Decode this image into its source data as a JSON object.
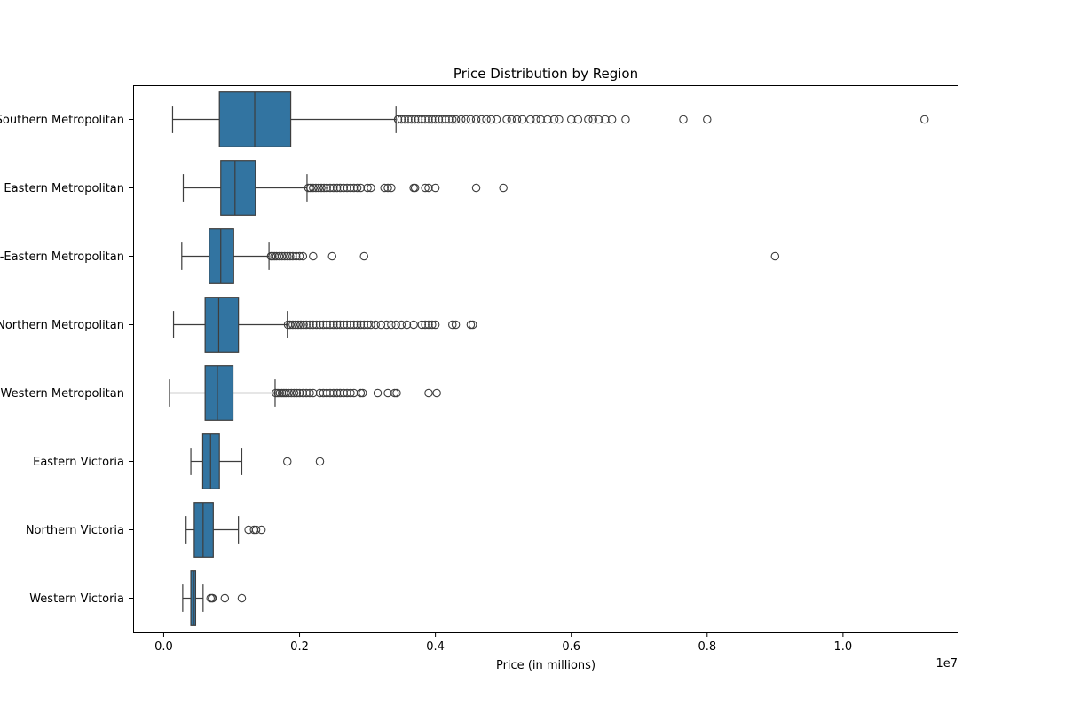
{
  "chart_data": {
    "type": "boxplot",
    "orientation": "horizontal",
    "title": "Price Distribution by Region",
    "xlabel": "Price (in millions)",
    "ylabel": "",
    "x_offset_label": "1e7",
    "xlim": [
      -450000,
      11700000
    ],
    "x_ticks": [
      0,
      2000000,
      4000000,
      6000000,
      8000000,
      10000000
    ],
    "x_tick_labels": [
      "0.0",
      "0.2",
      "0.4",
      "0.6",
      "0.8",
      "1.0"
    ],
    "grid": false,
    "colors": {
      "box": "#3274a1",
      "line": "#3d3d3d",
      "outlier_edge": "#3d3d3d"
    },
    "categories": [
      {
        "label": "Southern Metropolitan",
        "whisker_low": 131000,
        "q1": 820000,
        "median": 1340000,
        "q3": 1870000,
        "whisker_high": 3420000,
        "outliers": [
          3450000,
          3500000,
          3550000,
          3600000,
          3650000,
          3700000,
          3750000,
          3800000,
          3850000,
          3900000,
          3950000,
          4000000,
          4050000,
          4100000,
          4150000,
          4200000,
          4250000,
          4300000,
          4380000,
          4450000,
          4520000,
          4600000,
          4680000,
          4750000,
          4820000,
          4900000,
          5050000,
          5120000,
          5200000,
          5280000,
          5400000,
          5480000,
          5550000,
          5650000,
          5750000,
          5820000,
          6000000,
          6100000,
          6250000,
          6320000,
          6400000,
          6500000,
          6600000,
          6800000,
          7650000,
          8000000,
          11200000
        ]
      },
      {
        "label": "Eastern Metropolitan",
        "whisker_low": 288000,
        "q1": 840000,
        "median": 1050000,
        "q3": 1350000,
        "whisker_high": 2110000,
        "outliers": [
          2130000,
          2160000,
          2200000,
          2240000,
          2280000,
          2320000,
          2360000,
          2400000,
          2450000,
          2500000,
          2550000,
          2600000,
          2650000,
          2700000,
          2750000,
          2800000,
          2850000,
          2900000,
          3000000,
          3050000,
          3250000,
          3300000,
          3350000,
          3680000,
          3700000,
          3850000,
          3900000,
          4000000,
          4600000,
          5000000
        ]
      },
      {
        "label": "South-Eastern Metropolitan",
        "whisker_low": 266000,
        "q1": 670000,
        "median": 840000,
        "q3": 1030000,
        "whisker_high": 1550000,
        "outliers": [
          1580000,
          1600000,
          1630000,
          1660000,
          1700000,
          1740000,
          1780000,
          1820000,
          1860000,
          1900000,
          1950000,
          2000000,
          2050000,
          2200000,
          2480000,
          2950000,
          9000000
        ]
      },
      {
        "label": "Northern Metropolitan",
        "whisker_low": 145000,
        "q1": 610000,
        "median": 810000,
        "q3": 1100000,
        "whisker_high": 1820000,
        "outliers": [
          1830000,
          1860000,
          1900000,
          1940000,
          1980000,
          2020000,
          2060000,
          2100000,
          2150000,
          2200000,
          2250000,
          2300000,
          2350000,
          2400000,
          2450000,
          2500000,
          2550000,
          2600000,
          2650000,
          2700000,
          2750000,
          2800000,
          2850000,
          2900000,
          2950000,
          3000000,
          3050000,
          3120000,
          3200000,
          3280000,
          3350000,
          3420000,
          3500000,
          3580000,
          3680000,
          3800000,
          3850000,
          3900000,
          3950000,
          4000000,
          4250000,
          4300000,
          4520000,
          4550000
        ]
      },
      {
        "label": "Western Metropolitan",
        "whisker_low": 85000,
        "q1": 610000,
        "median": 790000,
        "q3": 1020000,
        "whisker_high": 1640000,
        "outliers": [
          1650000,
          1680000,
          1710000,
          1740000,
          1770000,
          1800000,
          1840000,
          1880000,
          1920000,
          1960000,
          2000000,
          2050000,
          2100000,
          2150000,
          2200000,
          2300000,
          2350000,
          2400000,
          2450000,
          2500000,
          2550000,
          2600000,
          2650000,
          2700000,
          2750000,
          2800000,
          2900000,
          2930000,
          3150000,
          3300000,
          3400000,
          3430000,
          3900000,
          4020000
        ]
      },
      {
        "label": "Eastern Victoria",
        "whisker_low": 400000,
        "q1": 575000,
        "median": 690000,
        "q3": 820000,
        "whisker_high": 1150000,
        "outliers": [
          1820000,
          2300000
        ]
      },
      {
        "label": "Northern Victoria",
        "whisker_low": 330000,
        "q1": 450000,
        "median": 580000,
        "q3": 730000,
        "whisker_high": 1100000,
        "outliers": [
          1250000,
          1330000,
          1360000,
          1440000
        ]
      },
      {
        "label": "Western Victoria",
        "whisker_low": 280000,
        "q1": 400000,
        "median": 440000,
        "q3": 470000,
        "whisker_high": 580000,
        "outliers": [
          690000,
          710000,
          720000,
          900000,
          1150000
        ]
      }
    ]
  }
}
